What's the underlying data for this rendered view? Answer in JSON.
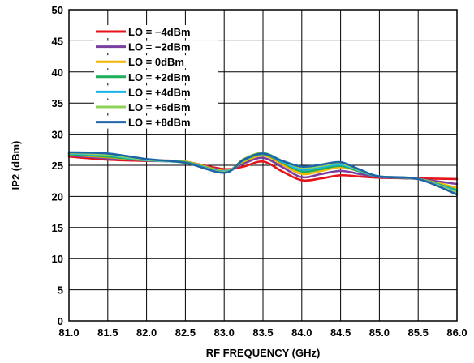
{
  "chart_data": {
    "type": "line",
    "title": "",
    "xlabel": "RF FREQUENCY (GHz)",
    "ylabel": "IP2 (dBm)",
    "xlim": [
      81.0,
      86.0
    ],
    "ylim": [
      0,
      50
    ],
    "xticks": [
      "81.0",
      "81.5",
      "82.0",
      "82.5",
      "83.0",
      "83.5",
      "84.0",
      "84.5",
      "85.0",
      "85.5",
      "86.0"
    ],
    "yticks": [
      "0",
      "5",
      "10",
      "15",
      "20",
      "25",
      "30",
      "35",
      "40",
      "45",
      "50"
    ],
    "grid": true,
    "legend_position": "top-left",
    "x": [
      81.0,
      81.5,
      82.0,
      82.5,
      83.0,
      83.25,
      83.5,
      83.75,
      84.0,
      84.25,
      84.5,
      84.75,
      85.0,
      85.5,
      86.0
    ],
    "series": [
      {
        "name": "LO = −4dBm",
        "color": "#e5141b",
        "values": [
          26.4,
          25.9,
          25.7,
          25.5,
          24.4,
          24.8,
          25.6,
          24.0,
          22.6,
          22.9,
          23.4,
          23.2,
          23.0,
          22.9,
          22.8
        ]
      },
      {
        "name": "LO = −2dBm",
        "color": "#7b3fa0",
        "values": [
          26.6,
          26.1,
          25.8,
          25.6,
          24.2,
          25.3,
          26.2,
          24.7,
          23.1,
          23.6,
          24.1,
          23.6,
          23.1,
          22.8,
          22.0
        ]
      },
      {
        "name": "LO = 0dBm",
        "color": "#f2b705",
        "values": [
          26.7,
          26.3,
          25.8,
          25.6,
          24.1,
          25.6,
          26.6,
          25.1,
          23.6,
          24.1,
          24.7,
          24.0,
          23.2,
          22.8,
          21.4
        ]
      },
      {
        "name": "LO = +2dBm",
        "color": "#1fae5a",
        "values": [
          26.8,
          26.4,
          25.8,
          25.5,
          24.0,
          25.8,
          26.8,
          25.4,
          24.0,
          24.4,
          24.9,
          24.0,
          23.2,
          22.8,
          21.0
        ]
      },
      {
        "name": "LO = +4dBm",
        "color": "#1ab4e8",
        "values": [
          26.9,
          26.6,
          25.8,
          25.4,
          24.0,
          25.9,
          26.9,
          25.5,
          24.3,
          24.7,
          25.1,
          24.1,
          23.2,
          22.8,
          20.8
        ]
      },
      {
        "name": "LO = +6dBm",
        "color": "#8fd35a",
        "values": [
          27.0,
          26.7,
          25.9,
          25.4,
          23.9,
          26.0,
          27.0,
          25.7,
          24.6,
          24.9,
          25.3,
          24.2,
          23.2,
          22.8,
          20.6
        ]
      },
      {
        "name": "LO = +8dBm",
        "color": "#1f64a8",
        "values": [
          27.1,
          26.9,
          26.0,
          25.4,
          23.8,
          25.9,
          26.9,
          25.7,
          24.8,
          25.1,
          25.5,
          24.3,
          23.2,
          22.8,
          20.3
        ]
      }
    ]
  }
}
